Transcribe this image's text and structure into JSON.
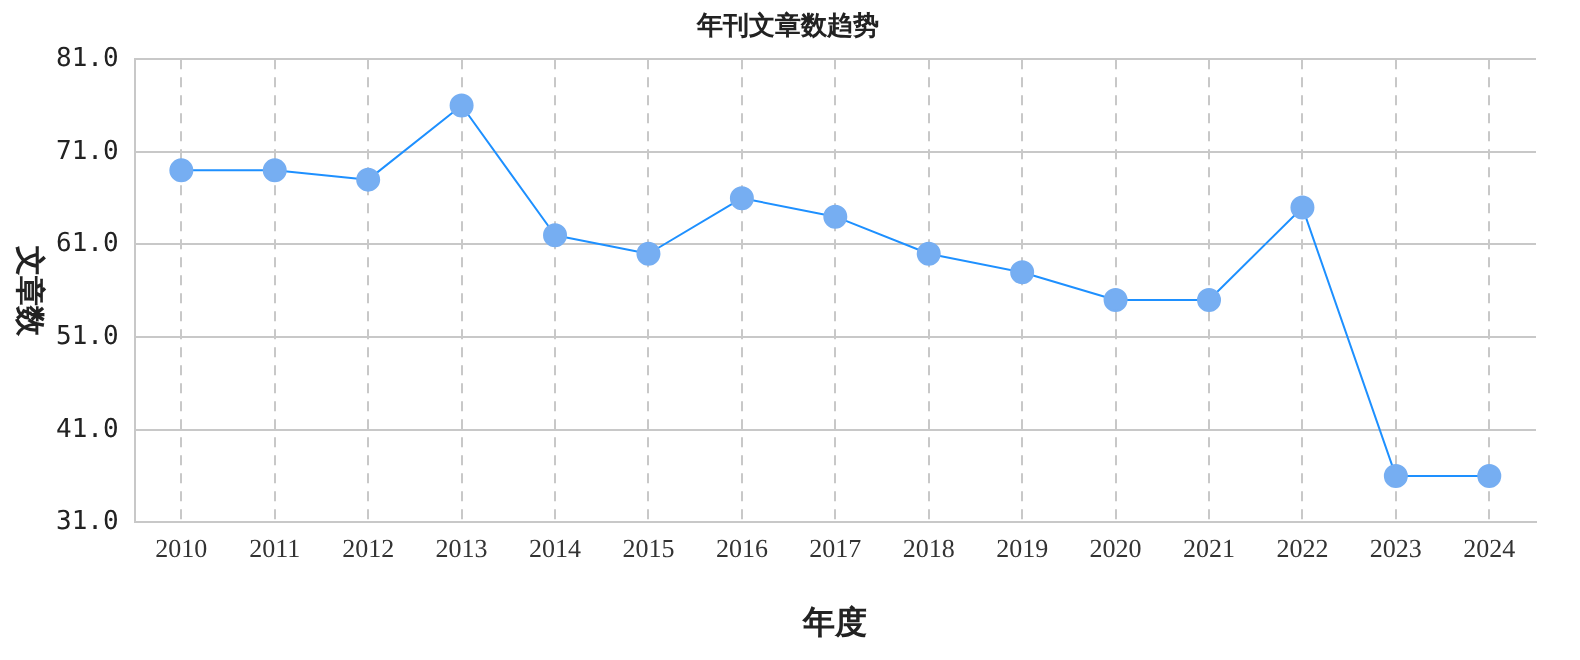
{
  "chart_data": {
    "type": "line",
    "title": "年刊文章数趋势",
    "xlabel": "年度",
    "ylabel": "文章数",
    "categories": [
      "2010",
      "2011",
      "2012",
      "2013",
      "2014",
      "2015",
      "2016",
      "2017",
      "2018",
      "2019",
      "2020",
      "2021",
      "2022",
      "2023",
      "2024"
    ],
    "series": [
      {
        "color": "#1e90ff",
        "values": [
          69,
          69,
          68,
          76,
          62,
          60,
          66,
          64,
          60,
          58,
          55,
          55,
          65,
          36,
          36
        ]
      }
    ],
    "ylim": [
      31,
      81
    ],
    "yticks": [
      {
        "value": 31,
        "label": "31.0"
      },
      {
        "value": 41,
        "label": "41.0"
      },
      {
        "value": 51,
        "label": "51.0"
      },
      {
        "value": 61,
        "label": "61.0"
      },
      {
        "value": 71,
        "label": "71.0"
      },
      {
        "value": 81,
        "label": "81.0"
      }
    ],
    "grid": true,
    "marker": "circle",
    "line_style": "solid",
    "legend": false
  }
}
